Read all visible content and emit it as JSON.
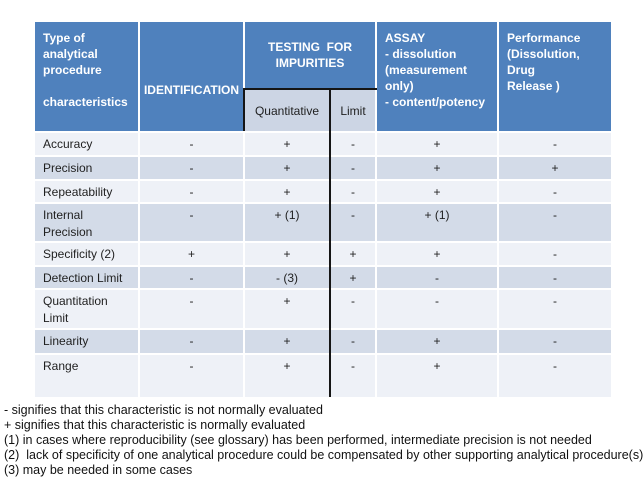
{
  "colors": {
    "header_blue": "#4f81bd",
    "subheader_bg": "#ccd5e4",
    "band_row_bg": "#d3dbe8",
    "light_row_bg": "#eef1f7",
    "rule_black": "#151515"
  },
  "table": {
    "header": {
      "type_col": "Type of\nanalytical\nprocedure\n\ncharacteristics",
      "identification": "IDENTIFICATION",
      "testing": "TESTING  FOR\nIMPURITIES",
      "assay": "ASSAY\n- dissolution\n(measurement\nonly)\n- content/potency",
      "performance": "Performance\n(Dissolution, Drug\nRelease )",
      "sub_quantitative": "Quantitative",
      "sub_limit": "Limit"
    },
    "rows": [
      {
        "label": "Accuracy",
        "cells": [
          "-",
          "+",
          "-",
          "+",
          "-"
        ]
      },
      {
        "label": "Precision",
        "cells": [
          "-",
          "+",
          "-",
          "+",
          "+"
        ]
      },
      {
        "label": "Repeatability",
        "cells": [
          "-",
          "+",
          "-",
          "+",
          "-"
        ]
      },
      {
        "label": "Internal\nPrecision",
        "cells": [
          "-",
          "+ (1)",
          "-",
          "+ (1)",
          "-"
        ]
      },
      {
        "label": "Specificity (2)",
        "cells": [
          "+",
          "+",
          "+",
          "+",
          "-"
        ]
      },
      {
        "label": "Detection Limit",
        "cells": [
          "-",
          "- (3)",
          "+",
          "-",
          "-"
        ]
      },
      {
        "label": "Quantitation\nLimit",
        "cells": [
          "-",
          "+",
          "-",
          "-",
          "-"
        ]
      },
      {
        "label": "Linearity",
        "cells": [
          "-",
          "+",
          "-",
          "+",
          "-"
        ]
      },
      {
        "label": "Range",
        "cells": [
          "-",
          "+",
          "-",
          "+",
          "-"
        ]
      }
    ]
  },
  "footnotes": [
    "- signifies that this characteristic is not normally evaluated",
    "+ signifies that this characteristic is normally evaluated",
    "(1) in cases where reproducibility (see glossary) has been performed, intermediate precision is not needed",
    "(2)  lack of specificity of one analytical procedure could be compensated by other supporting analytical procedure(s)",
    "(3) may be needed in some cases"
  ]
}
